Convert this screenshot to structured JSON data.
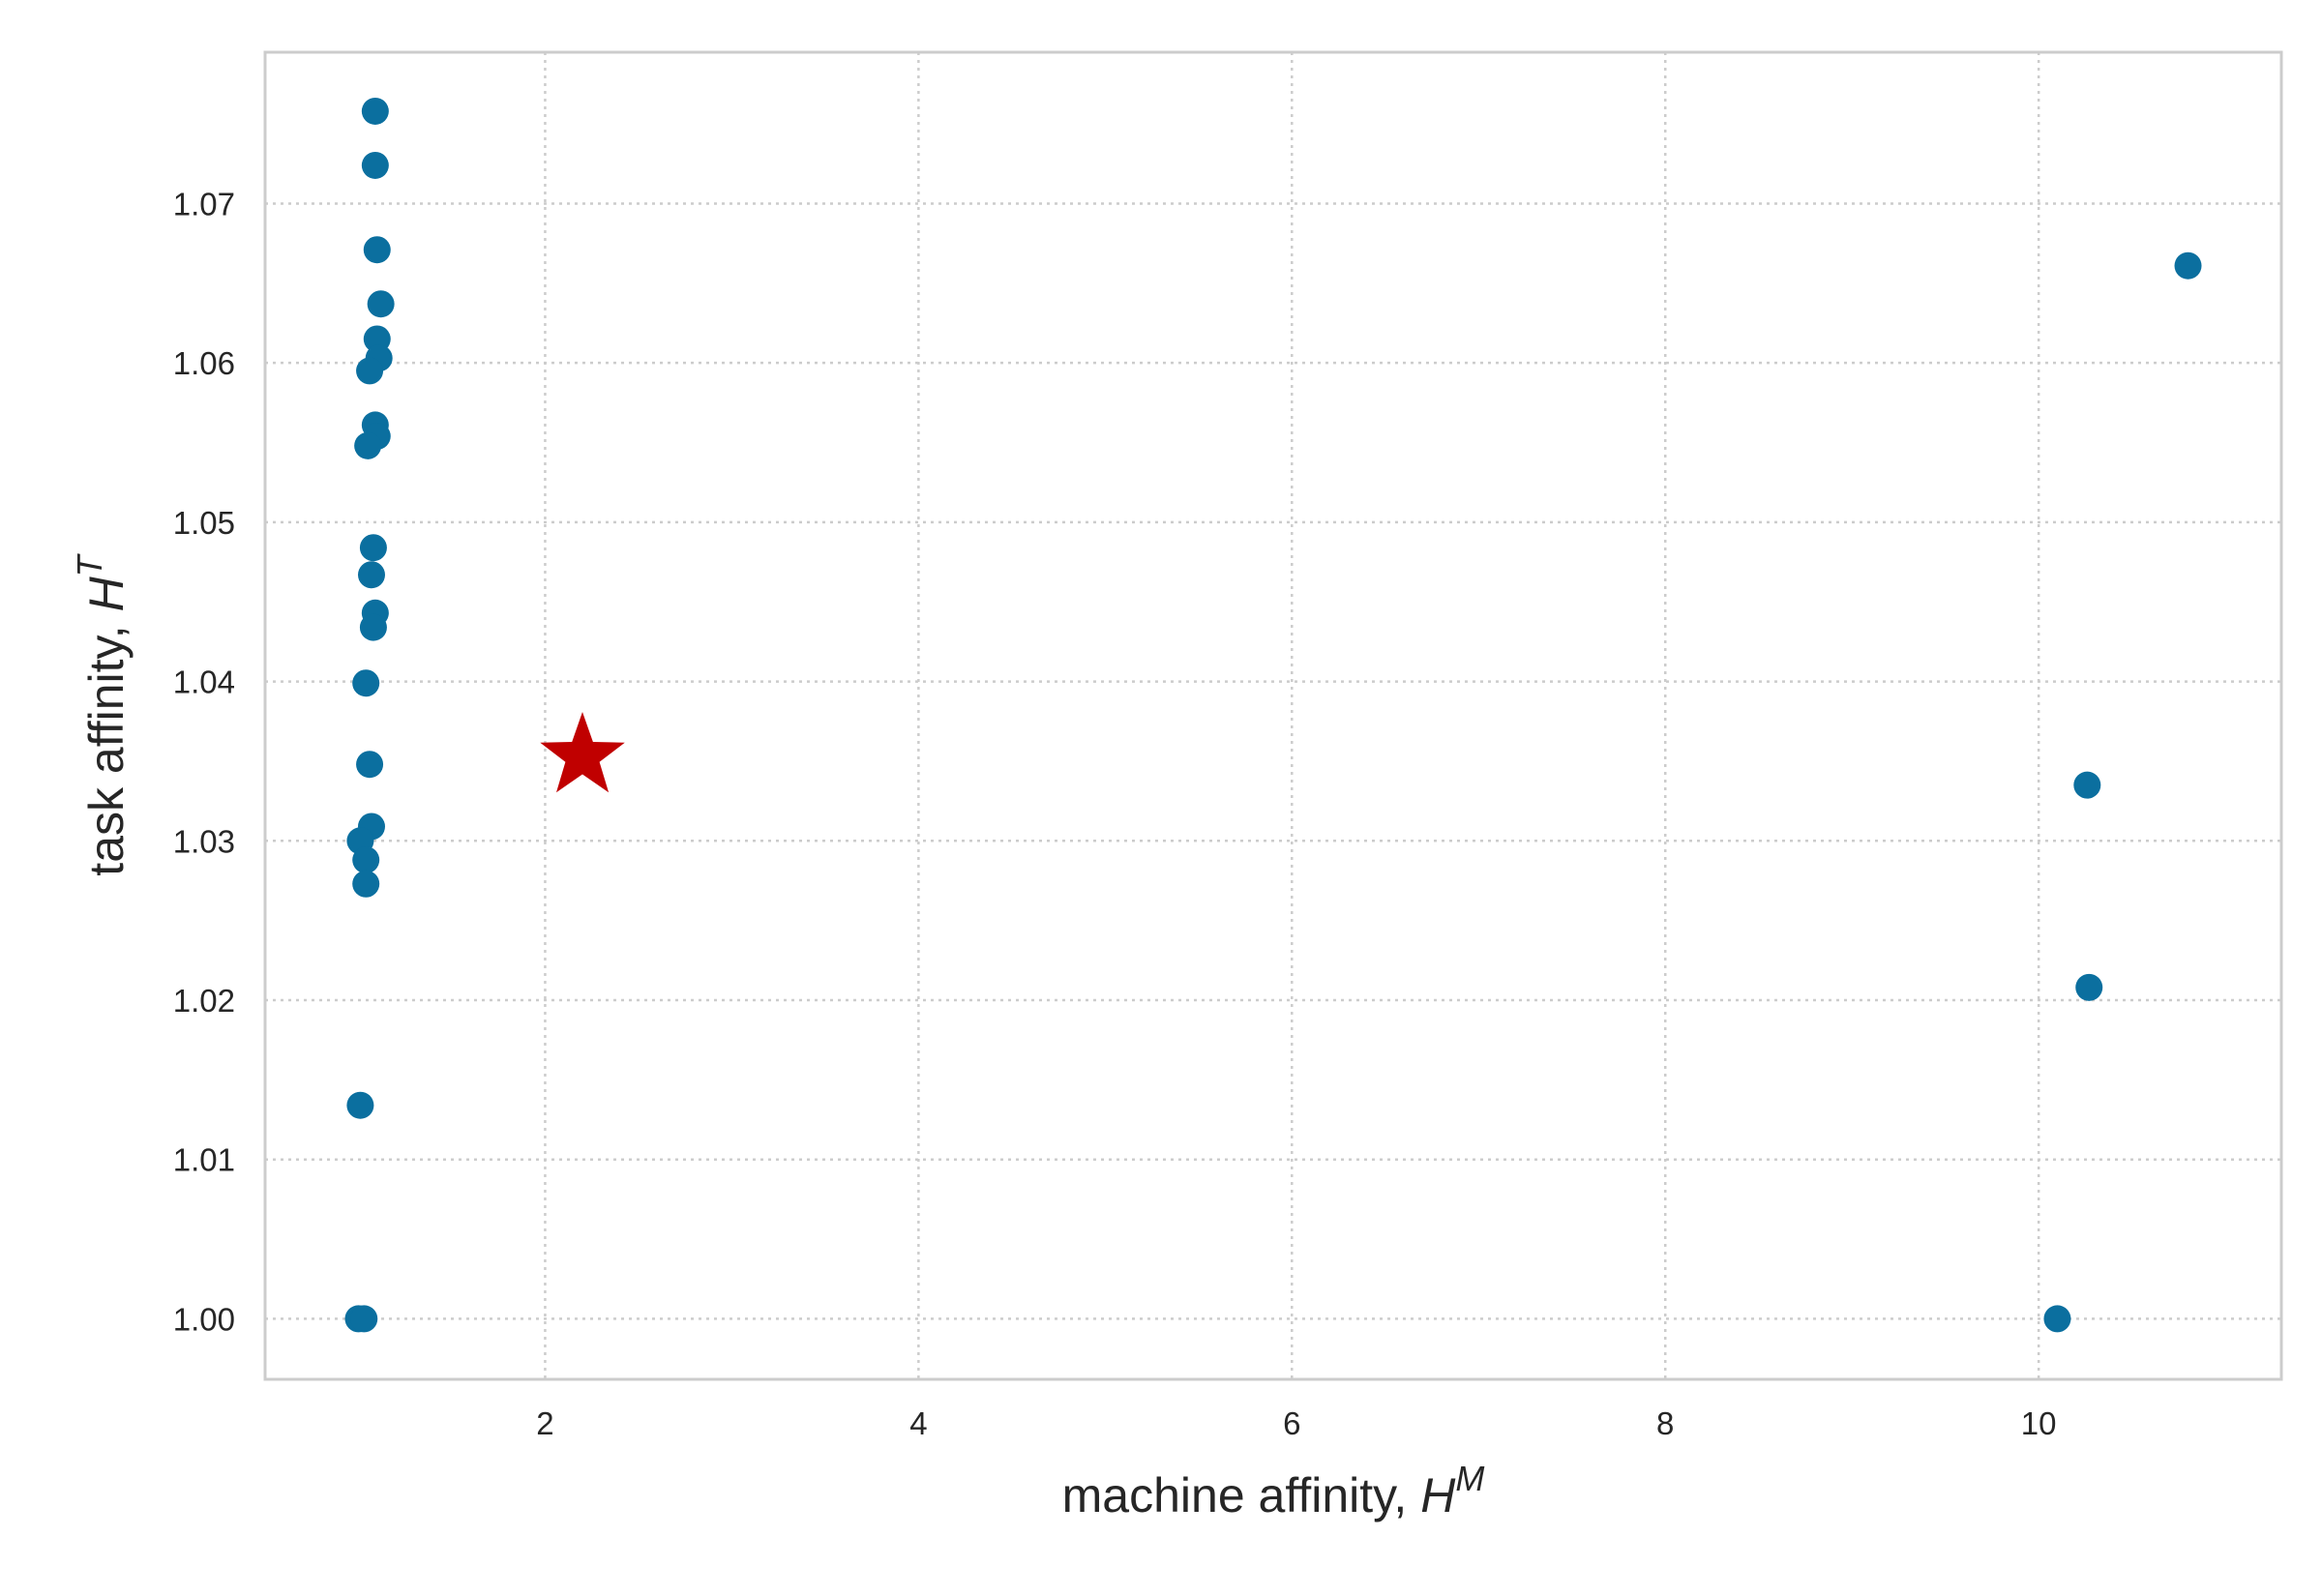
{
  "chart_data": {
    "type": "scatter",
    "xlabel": {
      "text": "machine affinity, ",
      "var": "H",
      "sup": "M"
    },
    "ylabel": {
      "text": "task affinity, ",
      "var": "H",
      "sup": "T"
    },
    "xlim": [
      0.5,
      11.3
    ],
    "ylim": [
      0.9962,
      1.0795
    ],
    "xticks": [
      2,
      4,
      6,
      8,
      10
    ],
    "xtick_labels": [
      "2",
      "4",
      "6",
      "8",
      "10"
    ],
    "yticks": [
      1.0,
      1.01,
      1.02,
      1.03,
      1.04,
      1.05,
      1.06,
      1.07
    ],
    "ytick_labels": [
      "1.00",
      "1.01",
      "1.02",
      "1.03",
      "1.04",
      "1.05",
      "1.06",
      "1.07"
    ],
    "grid": true,
    "grid_style": "dotted",
    "legend": "none",
    "colors": {
      "points": "#0b6f9f",
      "highlight": "#c00000",
      "grid": "#cccccc",
      "frame": "#cccccc"
    },
    "series": [
      {
        "marker": "circle",
        "points": [
          {
            "x": 1.09,
            "y": 1.0758
          },
          {
            "x": 1.09,
            "y": 1.0724
          },
          {
            "x": 1.1,
            "y": 1.0671
          },
          {
            "x": 1.12,
            "y": 1.0637
          },
          {
            "x": 1.1,
            "y": 1.0615
          },
          {
            "x": 1.11,
            "y": 1.0603
          },
          {
            "x": 1.06,
            "y": 1.0595
          },
          {
            "x": 1.09,
            "y": 1.0561
          },
          {
            "x": 1.1,
            "y": 1.0554
          },
          {
            "x": 1.05,
            "y": 1.0548
          },
          {
            "x": 1.08,
            "y": 1.0484
          },
          {
            "x": 1.07,
            "y": 1.0467
          },
          {
            "x": 1.09,
            "y": 1.0443
          },
          {
            "x": 1.08,
            "y": 1.0434
          },
          {
            "x": 1.04,
            "y": 1.0399
          },
          {
            "x": 1.06,
            "y": 1.0348
          },
          {
            "x": 1.07,
            "y": 1.0309
          },
          {
            "x": 1.01,
            "y": 1.03
          },
          {
            "x": 1.04,
            "y": 1.0288
          },
          {
            "x": 1.04,
            "y": 1.0273
          },
          {
            "x": 1.01,
            "y": 1.0134
          },
          {
            "x": 1.0,
            "y": 1.0
          },
          {
            "x": 1.03,
            "y": 1.0
          },
          {
            "x": 10.1,
            "y": 1.0
          },
          {
            "x": 10.27,
            "y": 1.0208
          },
          {
            "x": 10.26,
            "y": 1.0335
          },
          {
            "x": 10.8,
            "y": 1.0661
          }
        ]
      },
      {
        "marker": "star",
        "points": [
          {
            "x": 2.2,
            "y": 1.0353
          }
        ]
      }
    ]
  }
}
